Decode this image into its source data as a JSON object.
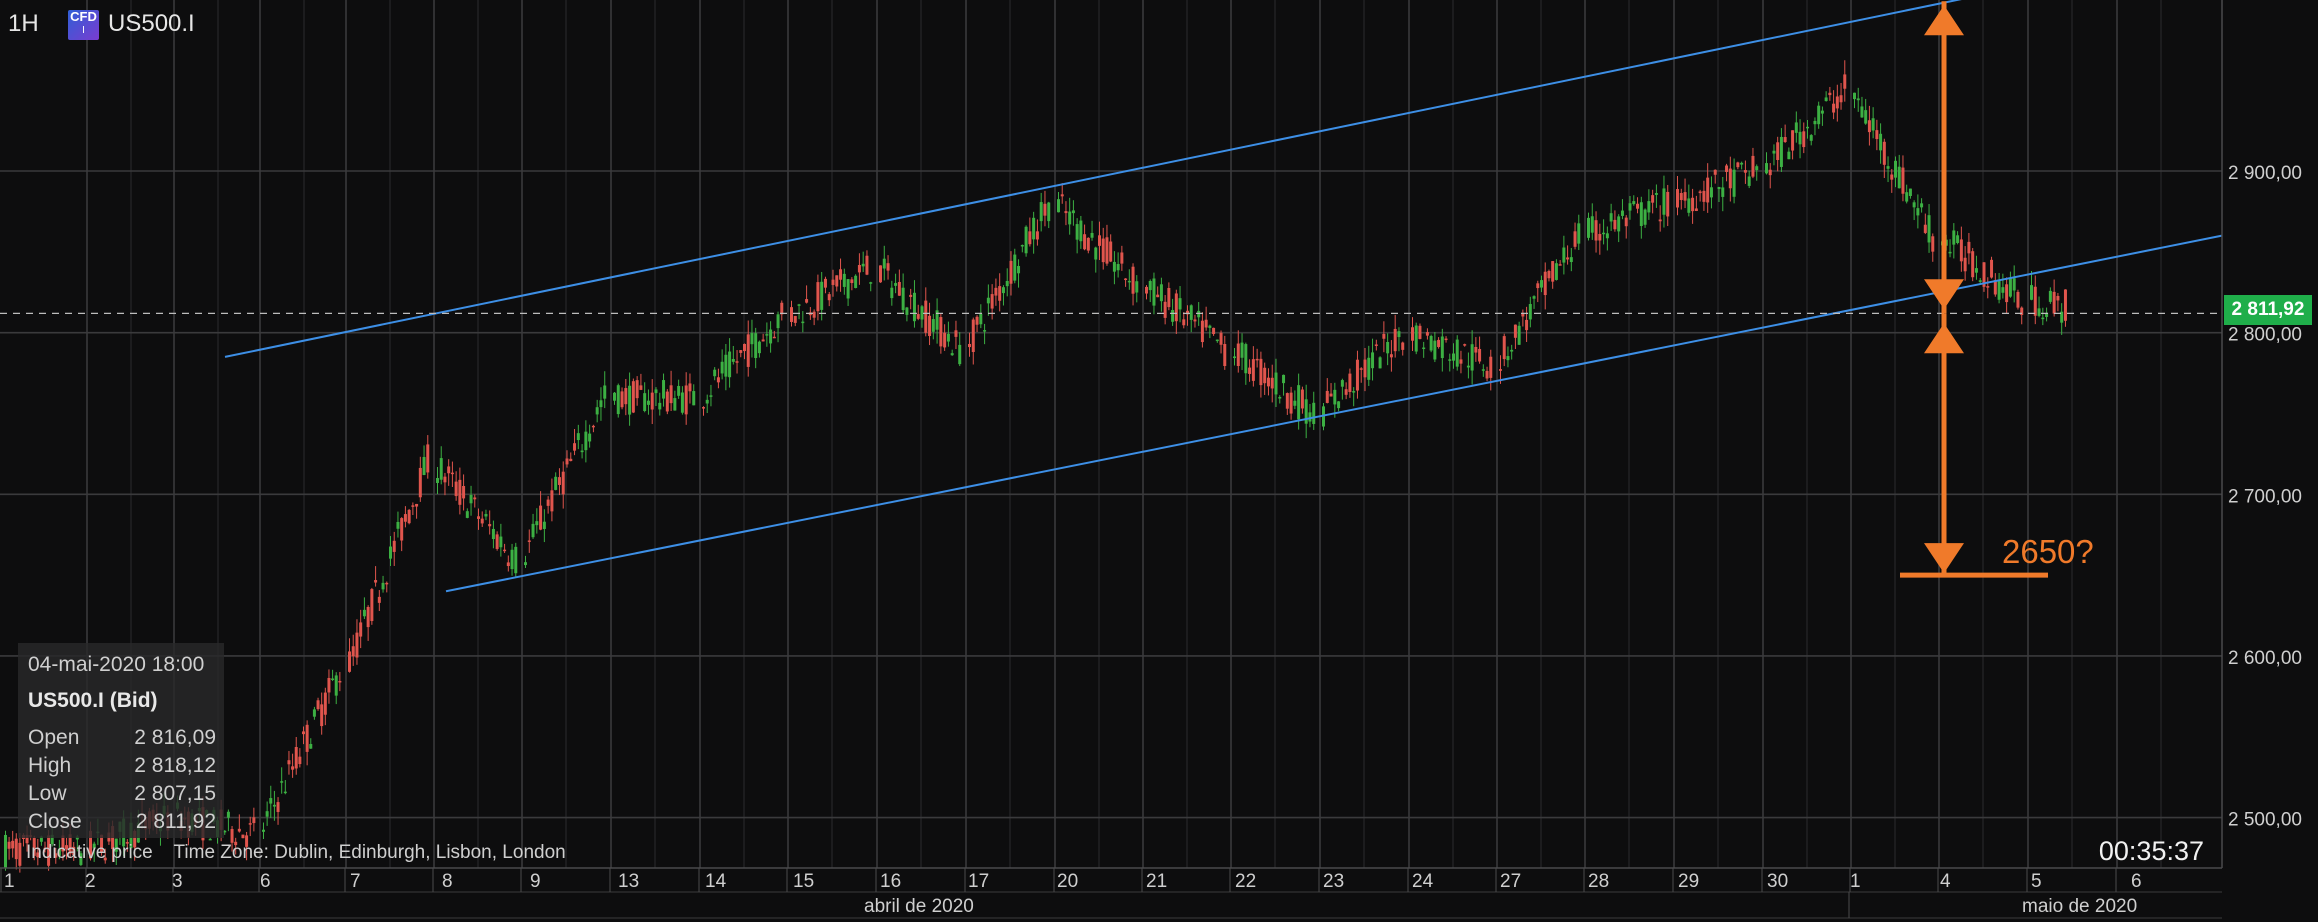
{
  "header": {
    "timeframe": "1H",
    "badge_top": "CFD",
    "badge_bottom": "I",
    "symbol": "US500.I"
  },
  "info_box": {
    "datetime": "04-mai-2020 18:00",
    "instrument": "US500.I (Bid)",
    "rows": [
      {
        "label": "Open",
        "value": "2 816,09"
      },
      {
        "label": "High",
        "value": "2 818,12"
      },
      {
        "label": "Low",
        "value": "2 807,15"
      },
      {
        "label": "Close",
        "value": "2 811,92"
      }
    ]
  },
  "footer_note": "Indicative price    Time Zone: Dublin, Edinburgh, Lisbon, London",
  "countdown": "00:35:37",
  "current_price_label": "2 811,92",
  "colors": {
    "background": "#0d0d0e",
    "grid": "#3a3a3c",
    "up_candle": "#3cb043",
    "down_candle": "#e0554d",
    "channel_line": "#3d8fe6",
    "annotation": "#f07a2a",
    "price_tag": "#1fae4a"
  },
  "chart_data": {
    "type": "candlestick",
    "title": "",
    "price_axis": {
      "ticks": [
        {
          "value": 2500,
          "label": "2 500,00"
        },
        {
          "value": 2600,
          "label": "2 600,00"
        },
        {
          "value": 2700,
          "label": "2 700,00"
        },
        {
          "value": 2800,
          "label": "2 800,00"
        },
        {
          "value": 2900,
          "label": "2 900,00"
        }
      ],
      "range": [
        2450,
        3000
      ]
    },
    "time_axis": {
      "day_labels": [
        "1",
        "2",
        "3",
        "6",
        "7",
        "8",
        "9",
        "13",
        "14",
        "15",
        "16",
        "17",
        "20",
        "21",
        "22",
        "23",
        "24",
        "27",
        "28",
        "29",
        "30",
        "1",
        "4",
        "5",
        "6"
      ],
      "month_labels": [
        "abril de 2020",
        "maio de 2020"
      ]
    },
    "current_price": 2811.92,
    "approx_close_path": [
      {
        "date": "2020-04-01",
        "close": 2480
      },
      {
        "date": "2020-04-02",
        "close": 2500
      },
      {
        "date": "2020-04-03",
        "close": 2490
      },
      {
        "date": "2020-04-06",
        "close": 2590
      },
      {
        "date": "2020-04-07",
        "close": 2720
      },
      {
        "date": "2020-04-08",
        "close": 2660
      },
      {
        "date": "2020-04-09",
        "close": 2760
      },
      {
        "date": "2020-04-13",
        "close": 2760
      },
      {
        "date": "2020-04-14",
        "close": 2810
      },
      {
        "date": "2020-04-15",
        "close": 2840
      },
      {
        "date": "2020-04-16",
        "close": 2790
      },
      {
        "date": "2020-04-17",
        "close": 2880
      },
      {
        "date": "2020-04-20",
        "close": 2830
      },
      {
        "date": "2020-04-21",
        "close": 2790
      },
      {
        "date": "2020-04-22",
        "close": 2750
      },
      {
        "date": "2020-04-23",
        "close": 2800
      },
      {
        "date": "2020-04-24",
        "close": 2780
      },
      {
        "date": "2020-04-27",
        "close": 2860
      },
      {
        "date": "2020-04-28",
        "close": 2880
      },
      {
        "date": "2020-04-29",
        "close": 2900
      },
      {
        "date": "2020-04-30",
        "close": 2950
      },
      {
        "date": "2020-05-01",
        "close": 2860
      },
      {
        "date": "2020-05-04",
        "close": 2820
      },
      {
        "date": "2020-05-05",
        "close": 2812
      }
    ],
    "annotations": {
      "channel_upper": [
        {
          "date": "2020-04-06",
          "price": 2785
        },
        {
          "date": "2020-05-05",
          "price": 3010
        }
      ],
      "channel_lower": [
        {
          "date": "2020-04-08",
          "price": 2640
        },
        {
          "date": "2020-05-06",
          "price": 2860
        }
      ],
      "target_label": "2650?",
      "target_price": 2650
    }
  }
}
